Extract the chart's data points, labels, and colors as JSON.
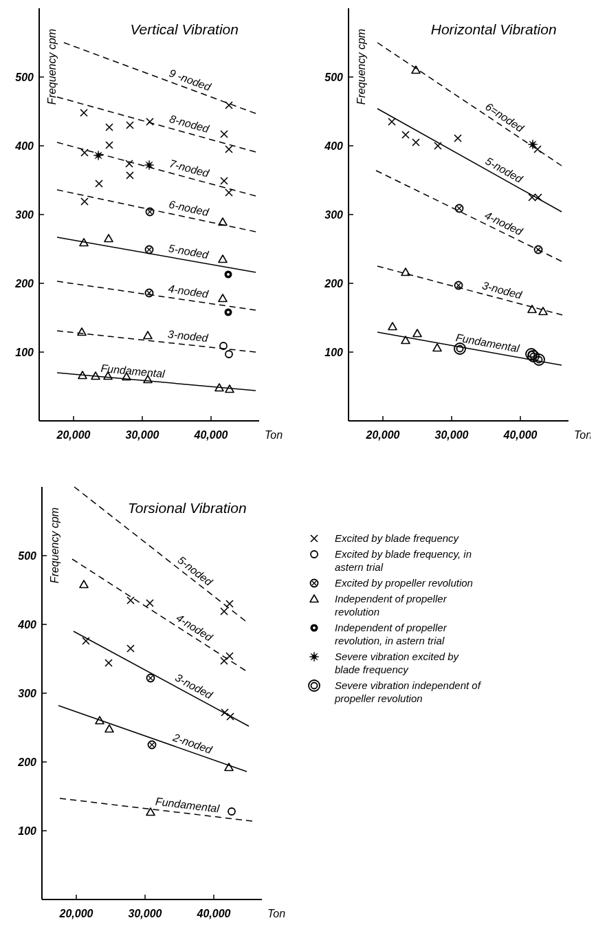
{
  "chart_data": [
    {
      "type": "scatter",
      "title": "Vertical Vibration",
      "xlabel": "Ton",
      "ylabel": "Frequency  cpm",
      "xlim": [
        15000,
        47000
      ],
      "ylim": [
        0,
        600
      ],
      "xticks": [
        {
          "value": 20000,
          "label": "20,000"
        },
        {
          "value": 30000,
          "label": "30,000"
        },
        {
          "value": 40000,
          "label": "40,000"
        }
      ],
      "yticks": [
        100,
        200,
        300,
        400,
        500
      ],
      "grid": false,
      "series": [
        {
          "type": "scatter",
          "marker": "cross",
          "color": "#000000",
          "x": [
            21500,
            25200,
            28200,
            31100,
            42600,
            41900,
            42600,
            25200,
            21600,
            28100,
            28200,
            23700,
            41900,
            42600,
            21600
          ],
          "values": [
            448,
            427,
            430,
            435,
            459,
            417,
            395,
            401,
            390,
            374,
            357,
            345,
            349,
            332,
            319
          ]
        },
        {
          "type": "scatter",
          "marker": "circle",
          "color": "#000000",
          "x": [
            41800,
            42600
          ],
          "values": [
            109,
            97
          ]
        },
        {
          "type": "scatter",
          "marker": "circle-cross",
          "color": "#000000",
          "x": [
            31100,
            31000,
            31000
          ],
          "values": [
            304,
            249,
            186
          ]
        },
        {
          "type": "scatter",
          "marker": "triangle",
          "color": "#000000",
          "x": [
            41700,
            21500,
            25100,
            41700,
            41700,
            21200,
            30800,
            21300,
            23200,
            25000,
            27700,
            30800,
            41200,
            42700
          ],
          "values": [
            289,
            259,
            265,
            235,
            178,
            129,
            124,
            66,
            65,
            65,
            64,
            60,
            48,
            46
          ]
        },
        {
          "type": "scatter",
          "marker": "circle-dot",
          "color": "#000000",
          "x": [
            42500,
            42500
          ],
          "values": [
            213,
            158
          ]
        },
        {
          "type": "scatter",
          "marker": "star",
          "color": "#000000",
          "x": [
            23600,
            31000
          ],
          "values": [
            386,
            372
          ]
        },
        {
          "type": "line",
          "line_style": "dashed",
          "color": "#000000",
          "x": [
            18600,
            46500
          ],
          "values": [
            550,
            447
          ]
        },
        {
          "type": "line",
          "line_style": "dashed",
          "color": "#000000",
          "x": [
            17600,
            46500
          ],
          "values": [
            471,
            391
          ]
        },
        {
          "type": "line",
          "line_style": "dashed",
          "color": "#000000",
          "x": [
            17600,
            46500
          ],
          "values": [
            405,
            327
          ]
        },
        {
          "type": "line",
          "line_style": "dashed",
          "color": "#000000",
          "x": [
            17600,
            46500
          ],
          "values": [
            336,
            275
          ]
        },
        {
          "type": "line",
          "line_style": "solid",
          "color": "#000000",
          "x": [
            17600,
            46500
          ],
          "values": [
            267,
            216
          ]
        },
        {
          "type": "line",
          "line_style": "dashed",
          "color": "#000000",
          "x": [
            17600,
            46500
          ],
          "values": [
            203,
            161
          ]
        },
        {
          "type": "line",
          "line_style": "dashed",
          "color": "#000000",
          "x": [
            17600,
            46500
          ],
          "values": [
            131,
            100
          ]
        },
        {
          "type": "line",
          "line_style": "solid",
          "color": "#000000",
          "x": [
            17600,
            46500
          ],
          "values": [
            70,
            44
          ]
        }
      ],
      "annotations": [
        {
          "text": "9 -noded",
          "x": 36500,
          "y": 484
        },
        {
          "text": "8-noded",
          "x": 36500,
          "y": 420
        },
        {
          "text": "7-noded",
          "x": 36500,
          "y": 355
        },
        {
          "text": "6-noded",
          "x": 36500,
          "y": 297
        },
        {
          "text": "5-noded",
          "x": 36500,
          "y": 234
        },
        {
          "text": "4-noded",
          "x": 36500,
          "y": 176
        },
        {
          "text": "3-noded",
          "x": 36500,
          "y": 111
        },
        {
          "text": "Fundamental",
          "x": 28500,
          "y": 60
        }
      ]
    },
    {
      "type": "scatter",
      "title": "Horizontal Vibration",
      "xlabel": "Ton",
      "ylabel": "Frequency  cpm",
      "xlim": [
        15000,
        47000
      ],
      "ylim": [
        0,
        600
      ],
      "xticks": [
        {
          "value": 20000,
          "label": "20,000"
        },
        {
          "value": 30000,
          "label": "30,000"
        },
        {
          "value": 40000,
          "label": "40,000"
        }
      ],
      "yticks": [
        100,
        200,
        300,
        400,
        500
      ],
      "grid": false,
      "series": [
        {
          "type": "scatter",
          "marker": "cross",
          "color": "#000000",
          "x": [
            21300,
            23300,
            24800,
            28000,
            30900,
            41700,
            42600,
            42500
          ],
          "values": [
            435,
            416,
            405,
            400,
            411,
            325,
            325,
            395
          ]
        },
        {
          "type": "scatter",
          "marker": "circle-cross",
          "color": "#000000",
          "x": [
            31100,
            42600,
            31000
          ],
          "values": [
            309,
            249,
            197
          ]
        },
        {
          "type": "scatter",
          "marker": "triangle",
          "color": "#000000",
          "x": [
            24800,
            23300,
            41700,
            43300,
            21400,
            23300,
            25000,
            27900
          ],
          "values": [
            510,
            216,
            162,
            159,
            137,
            117,
            127,
            106
          ]
        },
        {
          "type": "scatter",
          "marker": "star",
          "color": "#000000",
          "x": [
            41800
          ],
          "values": [
            402
          ]
        },
        {
          "type": "scatter",
          "marker": "double-circle",
          "color": "#000000",
          "x": [
            31200,
            41600,
            41900,
            42700
          ],
          "values": [
            105,
            97,
            94,
            89
          ]
        },
        {
          "type": "line",
          "line_style": "dashed",
          "color": "#000000",
          "x": [
            19200,
            46000
          ],
          "values": [
            550,
            371
          ]
        },
        {
          "type": "line",
          "line_style": "solid",
          "color": "#000000",
          "x": [
            19200,
            46000
          ],
          "values": [
            454,
            304
          ]
        },
        {
          "type": "line",
          "line_style": "dashed",
          "color": "#000000",
          "x": [
            19000,
            46000
          ],
          "values": [
            364,
            232
          ]
        },
        {
          "type": "line",
          "line_style": "dashed",
          "color": "#000000",
          "x": [
            19200,
            46100
          ],
          "values": [
            225,
            154
          ]
        },
        {
          "type": "line",
          "line_style": "solid",
          "color": "#000000",
          "x": [
            19200,
            46000
          ],
          "values": [
            129,
            81
          ]
        }
      ],
      "annotations": [
        {
          "text": "6=noded",
          "x": 37000,
          "y": 431
        },
        {
          "text": "5-noded",
          "x": 37000,
          "y": 354
        },
        {
          "text": "4-noded",
          "x": 37000,
          "y": 276
        },
        {
          "text": "3-noded",
          "x": 37000,
          "y": 178
        },
        {
          "text": "Fundamental",
          "x": 35000,
          "y": 101
        }
      ]
    },
    {
      "type": "scatter",
      "title": "Torsional Vibration",
      "xlabel": "Ton",
      "ylabel": "Frequency  cpm",
      "xlim": [
        15000,
        47000
      ],
      "ylim": [
        0,
        600
      ],
      "xticks": [
        {
          "value": 20000,
          "label": "20,000"
        },
        {
          "value": 30000,
          "label": "30,000"
        },
        {
          "value": 40000,
          "label": "40,000"
        }
      ],
      "yticks": [
        100,
        200,
        300,
        400,
        500
      ],
      "grid": false,
      "legend": "right",
      "series": [
        {
          "type": "scatter",
          "name": "Excited by blade frequency",
          "marker": "cross",
          "color": "#000000",
          "x": [
            27900,
            30700,
            42300,
            41500,
            21400,
            27900,
            24700,
            42300,
            41500,
            41600,
            42400
          ],
          "values": [
            435,
            431,
            430,
            419,
            376,
            365,
            344,
            354,
            347,
            272,
            266
          ]
        },
        {
          "type": "scatter",
          "name": "Excited by blade frequency, in astern trial",
          "marker": "circle",
          "color": "#000000",
          "x": [
            42600
          ],
          "values": [
            128
          ]
        },
        {
          "type": "scatter",
          "name": "Excited by propeller revolution",
          "marker": "circle-cross",
          "color": "#000000",
          "x": [
            30800,
            31000
          ],
          "values": [
            322,
            225
          ]
        },
        {
          "type": "scatter",
          "name": "Independent of propeller revolution",
          "marker": "triangle",
          "color": "#000000",
          "x": [
            21100,
            23400,
            24800,
            42200,
            30800
          ],
          "values": [
            458,
            260,
            248,
            192,
            127
          ]
        },
        {
          "type": "scatter",
          "name": "Independent of propeller revolution, in astern trial",
          "marker": "circle-dot",
          "color": "#000000"
        },
        {
          "type": "scatter",
          "name": "Severe vibration excited by blade frequency",
          "marker": "star",
          "color": "#000000"
        },
        {
          "type": "scatter",
          "name": "Severe vibration independent of propeller revolution",
          "marker": "double-circle",
          "color": "#000000"
        },
        {
          "type": "line",
          "line_style": "dashed",
          "color": "#000000",
          "x": [
            19700,
            44600
          ],
          "values": [
            600,
            405
          ]
        },
        {
          "type": "line",
          "line_style": "dashed",
          "color": "#000000",
          "x": [
            19400,
            44600
          ],
          "values": [
            495,
            333
          ]
        },
        {
          "type": "line",
          "line_style": "solid",
          "color": "#000000",
          "x": [
            19600,
            45100
          ],
          "values": [
            390,
            252
          ]
        },
        {
          "type": "line",
          "line_style": "solid",
          "color": "#000000",
          "x": [
            17400,
            44800
          ],
          "values": [
            282,
            186
          ]
        },
        {
          "type": "line",
          "line_style": "dashed",
          "color": "#000000",
          "x": [
            17600,
            45600
          ],
          "values": [
            147,
            114
          ]
        }
      ],
      "annotations": [
        {
          "text": "5-noded",
          "x": 36500,
          "y": 468
        },
        {
          "text": "4-noded",
          "x": 36500,
          "y": 385
        },
        {
          "text": "3-noded",
          "x": 36500,
          "y": 299
        },
        {
          "text": "2-noded",
          "x": 36500,
          "y": 215
        },
        {
          "text": "Fundamental",
          "x": 36000,
          "y": 125
        }
      ]
    }
  ]
}
